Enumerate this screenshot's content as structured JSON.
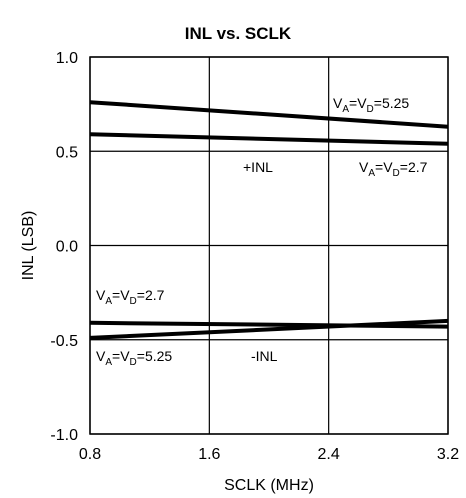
{
  "chart_data": {
    "type": "line",
    "title": "INL vs. SCLK",
    "xlabel": "SCLK (MHz)",
    "ylabel": "INL (LSB)",
    "xlim": [
      0.8,
      3.2
    ],
    "ylim": [
      -1.0,
      1.0
    ],
    "xticks": [
      "0.8",
      "1.6",
      "2.4",
      "3.2"
    ],
    "yticks": [
      "1.0",
      "0.5",
      "0.0",
      "-0.5",
      "-1.0"
    ],
    "grid": true,
    "x": [
      0.8,
      3.2
    ],
    "series": [
      {
        "name": "+INL, VA=VD=5.25",
        "values": [
          0.76,
          0.63
        ]
      },
      {
        "name": "+INL, VA=VD=2.7",
        "values": [
          0.59,
          0.54
        ]
      },
      {
        "name": "-INL, VA=VD=2.7",
        "values": [
          -0.41,
          -0.43
        ]
      },
      {
        "name": "-INL, VA=VD=5.25",
        "values": [
          -0.49,
          -0.4
        ]
      }
    ],
    "annotations": {
      "pos_label": "+INL",
      "neg_label": "-INL",
      "v_prefix_a": "V",
      "sub_a": "A",
      "eq1": "=V",
      "sub_d": "D",
      "val_525": "=5.25",
      "val_27": "=2.7"
    }
  }
}
